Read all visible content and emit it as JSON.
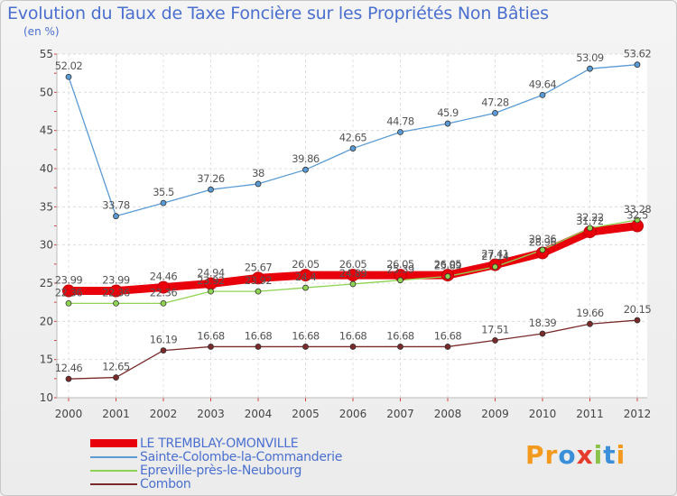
{
  "title": "Evolution du Taux de Taxe Foncière sur les Propriétés Non Bâties",
  "unit_label": "(en %)",
  "brand": {
    "text": "Proxiti",
    "letters": [
      "P",
      "r",
      "o",
      "x",
      "i",
      "t",
      "i"
    ],
    "letter_colors": [
      "#f39a1e",
      "#f39a1e",
      "#3b8fd8",
      "#e53b2c",
      "#8bc34a",
      "#3b8fd8",
      "#f39a1e"
    ]
  },
  "chart_data": {
    "type": "line",
    "x": [
      "2000",
      "2001",
      "2002",
      "2003",
      "2004",
      "2005",
      "2006",
      "2007",
      "2008",
      "2009",
      "2010",
      "2011",
      "2012"
    ],
    "ylim": [
      10,
      55
    ],
    "yticks": [
      "10",
      "15",
      "20",
      "25",
      "30",
      "35",
      "40",
      "45",
      "50",
      "55"
    ],
    "grid": true,
    "legend_position": "bottom-left",
    "series": [
      {
        "name": "LE TREMBLAY-OMONVILLE",
        "color": "#e8000b",
        "values": [
          23.99,
          23.99,
          24.46,
          24.94,
          25.67,
          26.05,
          26.05,
          26.05,
          26.05,
          27.41,
          28.96,
          31.72,
          32.5
        ],
        "labels": [
          "23.99",
          "23.99",
          "24.46",
          "24.94",
          "25.67",
          "26.05",
          "26.05",
          "26.05",
          "26.05",
          "27.41",
          "28.96",
          "31.72",
          "32.5"
        ]
      },
      {
        "name": "Sainte-Colombe-la-Commanderie",
        "color": "#5a9bd5",
        "values": [
          52.02,
          33.78,
          35.5,
          37.26,
          38,
          39.86,
          42.65,
          44.78,
          45.9,
          47.28,
          49.64,
          53.09,
          53.62
        ],
        "labels": [
          "52.02",
          "33.78",
          "35.5",
          "37.26",
          "38",
          "39.86",
          "42.65",
          "44.78",
          "45.9",
          "47.28",
          "49.64",
          "53.09",
          "53.62"
        ]
      },
      {
        "name": "Epreville-près-le-Neubourg",
        "color": "#8fd352",
        "values": [
          22.36,
          22.36,
          22.36,
          23.92,
          23.92,
          24.4,
          24.89,
          25.39,
          25.89,
          27.14,
          29.36,
          32.22,
          33.28
        ],
        "labels": [
          "22.36",
          "22.36",
          "22.36",
          "23.92",
          "23.92",
          "24.4",
          "24.89",
          "25.39",
          "25.89",
          "27.14",
          "29.36",
          "32.22",
          "33.28"
        ]
      },
      {
        "name": "Combon",
        "color": "#7a2a2a",
        "values": [
          12.46,
          12.65,
          16.19,
          16.68,
          16.68,
          16.68,
          16.68,
          16.68,
          16.68,
          17.51,
          18.39,
          19.66,
          20.15
        ],
        "labels": [
          "12.46",
          "12.65",
          "16.19",
          "16.68",
          "16.68",
          "16.68",
          "16.68",
          "16.68",
          "16.68",
          "17.51",
          "18.39",
          "19.66",
          "20.15"
        ]
      }
    ]
  }
}
